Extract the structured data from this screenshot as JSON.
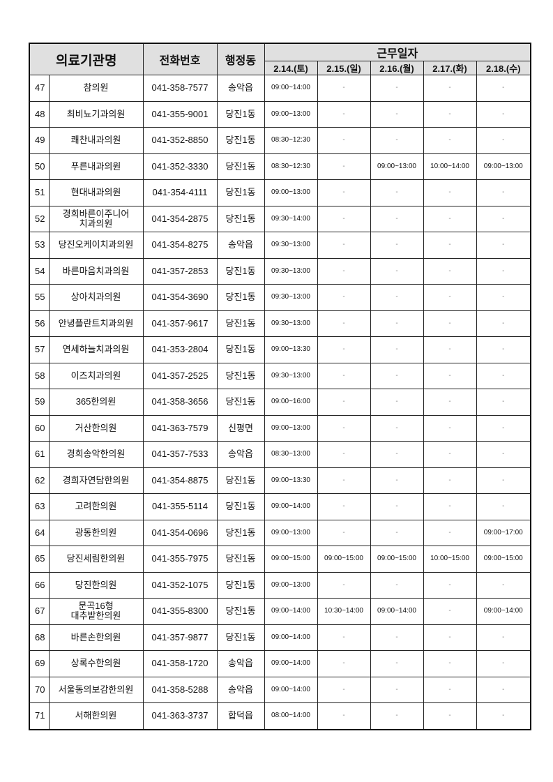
{
  "header": {
    "name": "의료기관명",
    "phone": "전화번호",
    "district": "행정동",
    "workdays": "근무일자",
    "dates": [
      "2.14.(토)",
      "2.15.(일)",
      "2.16.(월)",
      "2.17.(화)",
      "2.18.(수)"
    ]
  },
  "rows": [
    {
      "no": "47",
      "name": "참의원",
      "phone": "041-358-7577",
      "district": "송악읍",
      "hours": [
        "09:00~14:00",
        "-",
        "-",
        "-",
        "-"
      ]
    },
    {
      "no": "48",
      "name": "최비뇨기과의원",
      "phone": "041-355-9001",
      "district": "당진1동",
      "hours": [
        "09:00~13:00",
        "-",
        "-",
        "-",
        "-"
      ]
    },
    {
      "no": "49",
      "name": "쾌찬내과의원",
      "phone": "041-352-8850",
      "district": "당진1동",
      "hours": [
        "08:30~12:30",
        "-",
        "-",
        "-",
        "-"
      ]
    },
    {
      "no": "50",
      "name": "푸른내과의원",
      "phone": "041-352-3330",
      "district": "당진1동",
      "hours": [
        "08:30~12:30",
        "-",
        "09:00~13:00",
        "10:00~14:00",
        "09:00~13:00"
      ]
    },
    {
      "no": "51",
      "name": "현대내과의원",
      "phone": "041-354-4111",
      "district": "당진1동",
      "hours": [
        "09:00~13:00",
        "-",
        "-",
        "-",
        "-"
      ]
    },
    {
      "no": "52",
      "name": "경희바른이주니어\n치과의원",
      "phone": "041-354-2875",
      "district": "당진1동",
      "hours": [
        "09:30~14:00",
        "-",
        "-",
        "-",
        "-"
      ]
    },
    {
      "no": "53",
      "name": "당진오케이치과의원",
      "phone": "041-354-8275",
      "district": "송악읍",
      "hours": [
        "09:30~13:00",
        "-",
        "-",
        "-",
        "-"
      ]
    },
    {
      "no": "54",
      "name": "바른마음치과의원",
      "phone": "041-357-2853",
      "district": "당진1동",
      "hours": [
        "09:30~13:00",
        "-",
        "-",
        "-",
        "-"
      ]
    },
    {
      "no": "55",
      "name": "상아치과의원",
      "phone": "041-354-3690",
      "district": "당진1동",
      "hours": [
        "09:30~13:00",
        "-",
        "-",
        "-",
        "-"
      ]
    },
    {
      "no": "56",
      "name": "안녕플란트치과의원",
      "phone": "041-357-9617",
      "district": "당진1동",
      "hours": [
        "09:30~13:00",
        "-",
        "-",
        "-",
        "-"
      ]
    },
    {
      "no": "57",
      "name": "연세하늘치과의원",
      "phone": "041-353-2804",
      "district": "당진1동",
      "hours": [
        "09:00~13:30",
        "-",
        "-",
        "-",
        "-"
      ]
    },
    {
      "no": "58",
      "name": "이즈치과의원",
      "phone": "041-357-2525",
      "district": "당진1동",
      "hours": [
        "09:30~13:00",
        "-",
        "-",
        "-",
        "-"
      ]
    },
    {
      "no": "59",
      "name": "365한의원",
      "phone": "041-358-3656",
      "district": "당진1동",
      "hours": [
        "09:00~16:00",
        "-",
        "-",
        "-",
        "-"
      ]
    },
    {
      "no": "60",
      "name": "거산한의원",
      "phone": "041-363-7579",
      "district": "신평면",
      "hours": [
        "09:00~13:00",
        "-",
        "-",
        "-",
        "-"
      ]
    },
    {
      "no": "61",
      "name": "경희송악한의원",
      "phone": "041-357-7533",
      "district": "송악읍",
      "hours": [
        "08:30~13:00",
        "-",
        "-",
        "-",
        "-"
      ]
    },
    {
      "no": "62",
      "name": "경희자연담한의원",
      "phone": "041-354-8875",
      "district": "당진1동",
      "hours": [
        "09:00~13:30",
        "-",
        "-",
        "-",
        "-"
      ]
    },
    {
      "no": "63",
      "name": "고려한의원",
      "phone": "041-355-5114",
      "district": "당진1동",
      "hours": [
        "09:00~14:00",
        "-",
        "-",
        "-",
        "-"
      ]
    },
    {
      "no": "64",
      "name": "광동한의원",
      "phone": "041-354-0696",
      "district": "당진1동",
      "hours": [
        "09:00~13:00",
        "-",
        "-",
        "-",
        "09:00~17:00"
      ]
    },
    {
      "no": "65",
      "name": "당진세림한의원",
      "phone": "041-355-7975",
      "district": "당진1동",
      "hours": [
        "09:00~15:00",
        "09:00~15:00",
        "09:00~15:00",
        "10:00~15:00",
        "09:00~15:00"
      ]
    },
    {
      "no": "66",
      "name": "당진한의원",
      "phone": "041-352-1075",
      "district": "당진1동",
      "hours": [
        "09:00~13:00",
        "-",
        "-",
        "-",
        "-"
      ]
    },
    {
      "no": "67",
      "name": "문곡16형\n대추밭한의원",
      "phone": "041-355-8300",
      "district": "당진1동",
      "hours": [
        "09:00~14:00",
        "10:30~14:00",
        "09:00~14:00",
        "-",
        "09:00~14:00"
      ]
    },
    {
      "no": "68",
      "name": "바른손한의원",
      "phone": "041-357-9877",
      "district": "당진1동",
      "hours": [
        "09:00~14:00",
        "-",
        "-",
        "-",
        "-"
      ]
    },
    {
      "no": "69",
      "name": "상록수한의원",
      "phone": "041-358-1720",
      "district": "송악읍",
      "hours": [
        "09:00~14:00",
        "-",
        "-",
        "-",
        "-"
      ]
    },
    {
      "no": "70",
      "name": "서울동의보감한의원",
      "phone": "041-358-5288",
      "district": "송악읍",
      "hours": [
        "09:00~14:00",
        "-",
        "-",
        "-",
        "-"
      ]
    },
    {
      "no": "71",
      "name": "서해한의원",
      "phone": "041-363-3737",
      "district": "합덕읍",
      "hours": [
        "08:00~14:00",
        "-",
        "-",
        "-",
        "-"
      ]
    }
  ]
}
